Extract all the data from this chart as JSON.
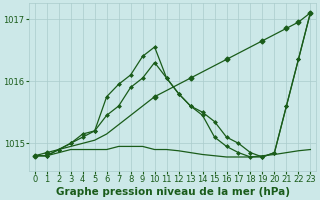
{
  "title": "Graphe pression niveau de la mer (hPa)",
  "bg_color": "#cce8e8",
  "grid_color": "#aacccc",
  "line_color": "#1a5c1a",
  "x": [
    0,
    1,
    2,
    3,
    4,
    5,
    6,
    7,
    8,
    9,
    10,
    11,
    12,
    13,
    14,
    15,
    16,
    17,
    18,
    19,
    20,
    21,
    22,
    23
  ],
  "line_diagonal": [
    1014.8,
    1014.85,
    1014.9,
    1014.95,
    1015.0,
    1015.05,
    1015.15,
    1015.3,
    1015.45,
    1015.6,
    1015.75,
    1015.85,
    1015.95,
    1016.05,
    1016.15,
    1016.25,
    1016.35,
    1016.45,
    1016.55,
    1016.65,
    1016.75,
    1016.85,
    1016.95,
    1017.1
  ],
  "line_jagged": [
    1014.8,
    1014.8,
    1014.9,
    1015.0,
    1015.15,
    1015.2,
    1015.75,
    1015.95,
    1016.1,
    1016.4,
    1016.55,
    1016.05,
    1015.8,
    1015.6,
    1015.45,
    1015.1,
    1014.95,
    1014.85,
    1014.78,
    1014.78,
    1014.85,
    1015.6,
    1016.35,
    1017.1
  ],
  "line_flat": [
    1014.8,
    1014.8,
    1014.85,
    1014.9,
    1014.9,
    1014.9,
    1014.9,
    1014.95,
    1014.95,
    1014.95,
    1014.9,
    1014.9,
    1014.88,
    1014.85,
    1014.82,
    1014.8,
    1014.78,
    1014.78,
    1014.78,
    1014.8,
    1014.82,
    1014.85,
    1014.88,
    1014.9
  ],
  "line_mid": [
    1014.8,
    1014.8,
    1014.9,
    1015.0,
    1015.1,
    1015.2,
    1015.45,
    1015.6,
    1015.9,
    1016.05,
    1016.3,
    1016.05,
    1015.8,
    1015.6,
    1015.5,
    1015.35,
    1015.1,
    1015.0,
    1014.85,
    1014.78,
    1014.85,
    1015.6,
    1016.35,
    1017.1
  ],
  "ylim_min": 1014.55,
  "ylim_max": 1017.25,
  "yticks": [
    1015,
    1016,
    1017
  ],
  "title_fontsize": 7.5,
  "tick_fontsize": 6
}
